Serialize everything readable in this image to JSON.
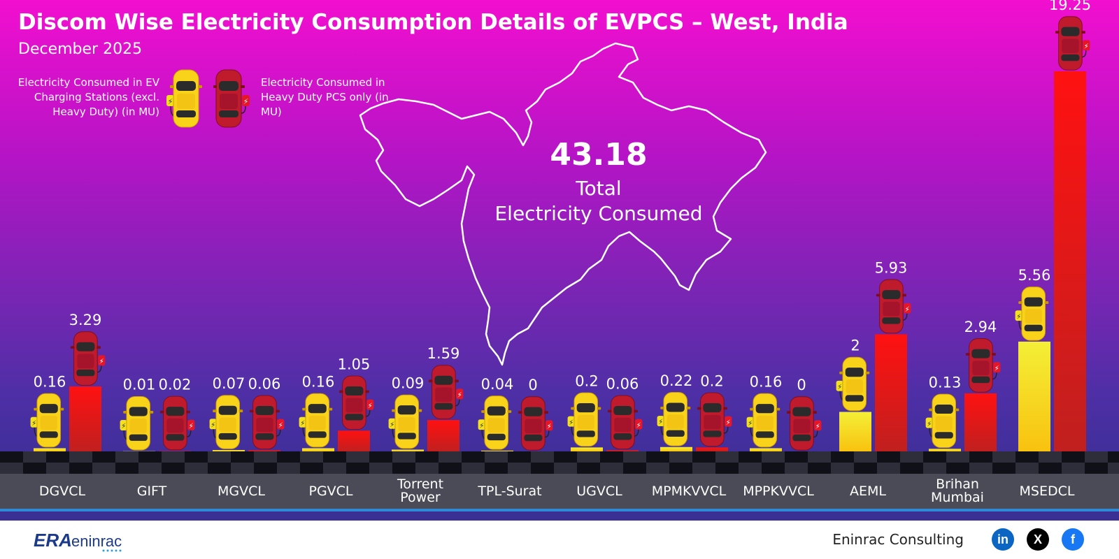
{
  "header": {
    "title": "Discom Wise Electricity Consumption Details of EVPCS – West, India",
    "subtitle": "December 2025"
  },
  "legend": {
    "series_a_label": "Electricity Consumed in EV Charging Stations (excl. Heavy Duty) (in MU)",
    "series_b_label": "Electricity Consumed in Heavy Duty PCS only (in MU)"
  },
  "total": {
    "value": "43.18",
    "label_line1": "Total",
    "label_line2": "Electricity Consumed"
  },
  "footer": {
    "company": "Eninrac Consulting",
    "logo_text": "ERAeninrac",
    "icons": [
      "linkedin-icon",
      "x-icon",
      "facebook-icon"
    ]
  },
  "colors": {
    "bg_top": "#f20fcf",
    "bg_bottom": "#36308f",
    "series_a": "#f7e017",
    "series_b": "#e8101a",
    "label_band": "#4a4b57"
  },
  "chart_data": {
    "type": "bar",
    "categories": [
      "DGVCL",
      "GIFT",
      "MGVCL",
      "PGVCL",
      "Torrent Power",
      "TPL-Surat",
      "UGVCL",
      "MPMKVVCL",
      "MPPKVVCL",
      "AEML",
      "Brihan Mumbai",
      "MSEDCL"
    ],
    "series": [
      {
        "name": "Electricity Consumed in EV Charging Stations (excl. Heavy Duty) (in MU)",
        "values": [
          0.16,
          0.01,
          0.07,
          0.16,
          0.09,
          0.04,
          0.2,
          0.22,
          0.16,
          2,
          0.13,
          5.56
        ]
      },
      {
        "name": "Electricity Consumed in Heavy Duty PCS only (in MU)",
        "values": [
          3.29,
          0.02,
          0.06,
          1.05,
          1.59,
          0,
          0.06,
          0.2,
          0,
          5.93,
          2.94,
          19.25
        ]
      }
    ],
    "xlabel": "",
    "ylabel": "",
    "ylim": [
      0,
      19.25
    ],
    "grid": false,
    "legend_position": "top-left"
  }
}
